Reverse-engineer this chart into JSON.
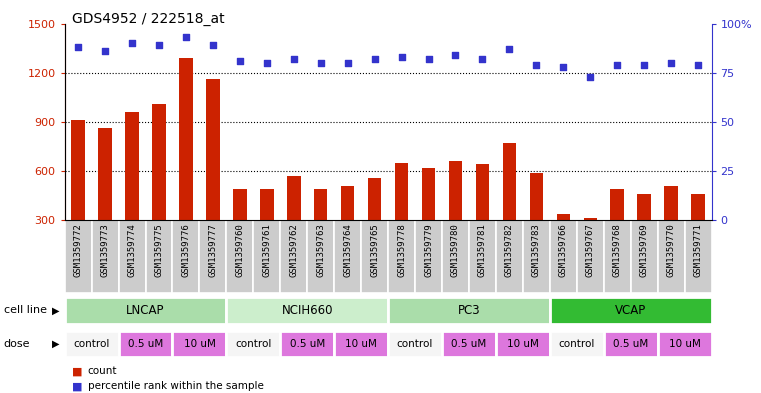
{
  "title": "GDS4952 / 222518_at",
  "samples": [
    "GSM1359772",
    "GSM1359773",
    "GSM1359774",
    "GSM1359775",
    "GSM1359776",
    "GSM1359777",
    "GSM1359760",
    "GSM1359761",
    "GSM1359762",
    "GSM1359763",
    "GSM1359764",
    "GSM1359765",
    "GSM1359778",
    "GSM1359779",
    "GSM1359780",
    "GSM1359781",
    "GSM1359782",
    "GSM1359783",
    "GSM1359766",
    "GSM1359767",
    "GSM1359768",
    "GSM1359769",
    "GSM1359770",
    "GSM1359771"
  ],
  "bar_values": [
    910,
    860,
    960,
    1010,
    1290,
    1160,
    490,
    490,
    570,
    490,
    510,
    560,
    650,
    620,
    660,
    640,
    770,
    590,
    340,
    310,
    490,
    460,
    510,
    460
  ],
  "percentile_values": [
    88,
    86,
    90,
    89,
    93,
    89,
    81,
    80,
    82,
    80,
    80,
    82,
    83,
    82,
    84,
    82,
    87,
    79,
    78,
    73,
    79,
    79,
    80,
    79
  ],
  "bar_color": "#cc2200",
  "percentile_color": "#3333cc",
  "cell_lines": [
    {
      "name": "LNCAP",
      "start": 0,
      "end": 6,
      "color": "#aaddaa"
    },
    {
      "name": "NCIH660",
      "start": 6,
      "end": 12,
      "color": "#cceecc"
    },
    {
      "name": "PC3",
      "start": 12,
      "end": 18,
      "color": "#aaddaa"
    },
    {
      "name": "VCAP",
      "start": 18,
      "end": 24,
      "color": "#33bb33"
    }
  ],
  "doses": [
    {
      "name": "control",
      "start": 0,
      "end": 2
    },
    {
      "name": "0.5 uM",
      "start": 2,
      "end": 4
    },
    {
      "name": "10 uM",
      "start": 4,
      "end": 6
    },
    {
      "name": "control",
      "start": 6,
      "end": 8
    },
    {
      "name": "0.5 uM",
      "start": 8,
      "end": 10
    },
    {
      "name": "10 uM",
      "start": 10,
      "end": 12
    },
    {
      "name": "control",
      "start": 12,
      "end": 14
    },
    {
      "name": "0.5 uM",
      "start": 14,
      "end": 16
    },
    {
      "name": "10 uM",
      "start": 16,
      "end": 18
    },
    {
      "name": "control",
      "start": 18,
      "end": 20
    },
    {
      "name": "0.5 uM",
      "start": 20,
      "end": 22
    },
    {
      "name": "10 uM",
      "start": 22,
      "end": 24
    }
  ],
  "dose_colors": {
    "control": "#f5f5f5",
    "0.5 uM": "#dd77dd",
    "10 uM": "#dd77dd"
  },
  "ylim_left": [
    300,
    1500
  ],
  "ylim_right": [
    0,
    100
  ],
  "yticks_left": [
    300,
    600,
    900,
    1200,
    1500
  ],
  "yticks_right": [
    0,
    25,
    50,
    75,
    100
  ],
  "ytick_labels_right": [
    "0",
    "25",
    "50",
    "75",
    "100%"
  ],
  "gridlines": [
    600,
    900,
    1200
  ],
  "tick_label_bg": "#cccccc",
  "bg_color": "#ffffff"
}
